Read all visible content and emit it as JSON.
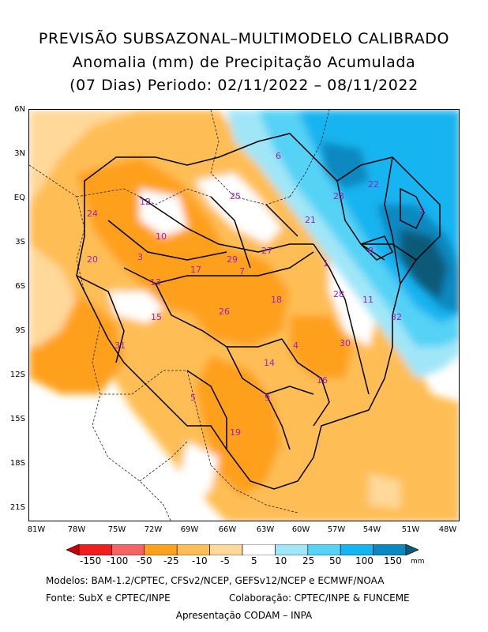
{
  "title": {
    "line1": "PREVISÃO SUBSAZONAL–MULTIMODELO CALIBRADO",
    "line2": "Anomalia (mm) de Precipitação Acumulada",
    "line3": "(07 Dias) Periodo: 02/11/2022 – 08/11/2022"
  },
  "axes": {
    "y_ticks": [
      "6N",
      "3N",
      "EQ",
      "3S",
      "6S",
      "9S",
      "12S",
      "15S",
      "18S",
      "21S"
    ],
    "x_ticks": [
      "81W",
      "78W",
      "75W",
      "72W",
      "69W",
      "66W",
      "63W",
      "60W",
      "57W",
      "54W",
      "51W",
      "48W"
    ]
  },
  "basins": [
    "1",
    "2",
    "3",
    "4",
    "5",
    "6",
    "7",
    "8",
    "9",
    "10",
    "11",
    "12",
    "13",
    "14",
    "15",
    "16",
    "17",
    "18",
    "19",
    "20",
    "21",
    "22",
    "23",
    "24",
    "25",
    "26",
    "27",
    "28",
    "29",
    "30",
    "31",
    "32"
  ],
  "colorbar": {
    "labels": [
      "-150",
      "-100",
      "-50",
      "-25",
      "-10",
      "-5",
      "5",
      "10",
      "25",
      "50",
      "100",
      "150"
    ],
    "colors": [
      "#c8000a",
      "#f01e1e",
      "#f56464",
      "#ffa01e",
      "#ffbe55",
      "#ffd89a",
      "#ffffff",
      "#a0e6f8",
      "#55d2f5",
      "#14b4f0",
      "#0a88c0",
      "#0a5a78"
    ],
    "unit": "mm"
  },
  "footer": {
    "line1": "Modelos: BAM-1.2/CPTEC, CFSv2/NCEP, GEFSv12/NCEP e ECMWF/NOAA",
    "line2a": "Fonte: SubX e CPTEC/INPE",
    "line2b": "Colaboração: CPTEC/INPE & FUNCEME",
    "line3": "Apresentação CODAM – INPA"
  }
}
